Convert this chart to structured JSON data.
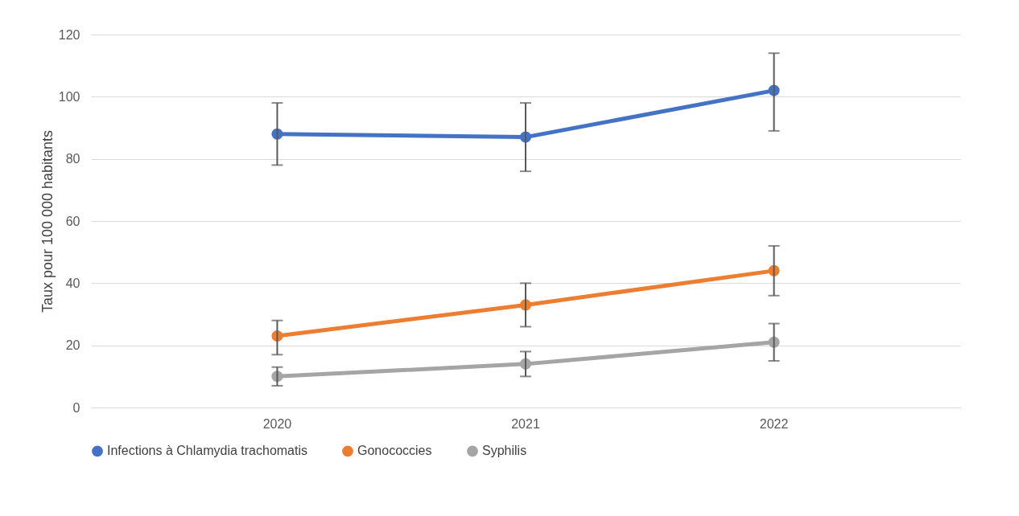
{
  "chart_data": {
    "type": "line",
    "ylabel": "Taux pour 100 000 habitants",
    "categories": [
      "2020",
      "2021",
      "2022"
    ],
    "series": [
      {
        "name": "Infections à Chlamydia trachomatis",
        "color": "#4472c4",
        "values": [
          88,
          87,
          102
        ],
        "errors": [
          [
            78,
            98
          ],
          [
            76,
            98
          ],
          [
            89,
            114
          ]
        ]
      },
      {
        "name": "Gonococcies",
        "color": "#ed7d31",
        "values": [
          23,
          33,
          44
        ],
        "errors": [
          [
            17,
            28
          ],
          [
            26,
            40
          ],
          [
            36,
            52
          ]
        ]
      },
      {
        "name": "Syphilis",
        "color": "#a5a5a5",
        "values": [
          10,
          14,
          21
        ],
        "errors": [
          [
            7,
            13
          ],
          [
            10,
            18
          ],
          [
            15,
            27
          ]
        ]
      }
    ],
    "ylim": [
      0,
      120
    ],
    "yticks": [
      0,
      20,
      40,
      60,
      80,
      100,
      120
    ],
    "grid": "y",
    "legend": "bottom",
    "marker": "circle",
    "line_style": "solid"
  }
}
